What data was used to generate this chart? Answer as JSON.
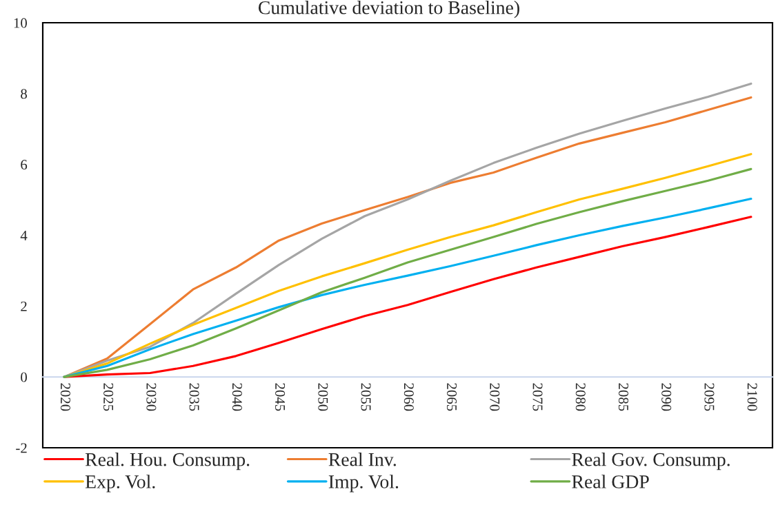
{
  "chart_data": {
    "type": "line",
    "title": "Cumulative deviation to Baseline)",
    "categories": [
      "2020",
      "2025",
      "2030",
      "2035",
      "2040",
      "2045",
      "2050",
      "2055",
      "2060",
      "2065",
      "2070",
      "2075",
      "2080",
      "2085",
      "2090",
      "2095",
      "2100"
    ],
    "series": [
      {
        "name": "Real. Hou. Consump.",
        "color": "#ff0000",
        "values": [
          0,
          0.07,
          0.11,
          0.31,
          0.59,
          0.96,
          1.35,
          1.72,
          2.03,
          2.4,
          2.76,
          3.09,
          3.39,
          3.69,
          3.95,
          4.23,
          4.52
        ]
      },
      {
        "name": "Real Inv.",
        "color": "#ed7d31",
        "values": [
          0,
          0.52,
          1.49,
          2.47,
          3.09,
          3.85,
          4.33,
          4.71,
          5.08,
          5.48,
          5.77,
          6.19,
          6.59,
          6.89,
          7.19,
          7.54,
          7.89
        ]
      },
      {
        "name": "Real Gov. Consump.",
        "color": "#a5a5a5",
        "values": [
          0,
          0.46,
          0.85,
          1.52,
          2.35,
          3.16,
          3.9,
          4.54,
          5.01,
          5.54,
          6.04,
          6.47,
          6.87,
          7.23,
          7.58,
          7.91,
          8.28
        ]
      },
      {
        "name": "Exp. Vol.",
        "color": "#ffc000",
        "values": [
          0,
          0.38,
          0.94,
          1.47,
          1.95,
          2.43,
          2.84,
          3.21,
          3.59,
          3.95,
          4.28,
          4.65,
          5.01,
          5.31,
          5.62,
          5.95,
          6.29
        ]
      },
      {
        "name": "Imp. Vol.",
        "color": "#00b0f0",
        "values": [
          0,
          0.31,
          0.78,
          1.21,
          1.59,
          1.97,
          2.31,
          2.6,
          2.86,
          3.13,
          3.42,
          3.72,
          4.0,
          4.26,
          4.5,
          4.76,
          5.03
        ]
      },
      {
        "name": "Real GDP",
        "color": "#70ad47",
        "values": [
          0,
          0.2,
          0.5,
          0.89,
          1.37,
          1.88,
          2.39,
          2.8,
          3.23,
          3.59,
          3.95,
          4.32,
          4.65,
          4.96,
          5.25,
          5.54,
          5.87
        ]
      }
    ],
    "ylim": [
      -2,
      10
    ],
    "yticks": [
      -2,
      0,
      2,
      4,
      6,
      8,
      10
    ],
    "legend": "bottom"
  }
}
